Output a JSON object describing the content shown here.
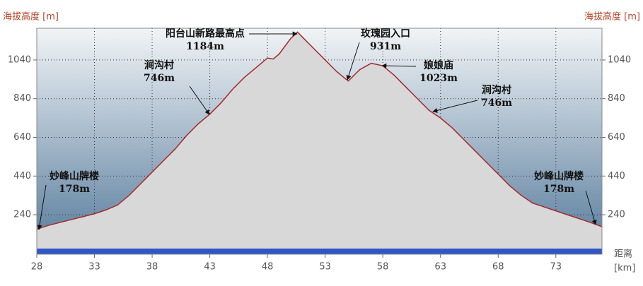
{
  "chart_data": {
    "type": "area",
    "y_label": "海拔高度 [m]",
    "y2_label": "海拔高度 [m]",
    "x_label": "距离",
    "x_unit": "[km]",
    "x": [
      28,
      29,
      30,
      31,
      32,
      33,
      34,
      35,
      36,
      37,
      38,
      39,
      40,
      41,
      42,
      43,
      44,
      45,
      46,
      47,
      48,
      48.5,
      49,
      49.5,
      50,
      50.6,
      51,
      52,
      53,
      54,
      55,
      56,
      57,
      58,
      59,
      60,
      61,
      62,
      63,
      64,
      65,
      66,
      67,
      68,
      69,
      70,
      71,
      72,
      73,
      74,
      75,
      76,
      77
    ],
    "series": [
      {
        "color": "#a52a2a",
        "fill": "#d8d8d8",
        "values": [
          165,
          185,
          200,
          215,
          230,
          245,
          265,
          290,
          340,
          400,
          460,
          520,
          580,
          650,
          710,
          760,
          820,
          890,
          950,
          1000,
          1050,
          1045,
          1070,
          1110,
          1150,
          1184,
          1160,
          1100,
          1040,
          980,
          931,
          990,
          1023,
          1010,
          960,
          900,
          840,
          780,
          740,
          690,
          630,
          570,
          510,
          450,
          390,
          340,
          300,
          280,
          260,
          240,
          220,
          200,
          178
        ]
      }
    ],
    "xlim": [
      28,
      77
    ],
    "ylim": [
      36,
      1204
    ],
    "xticks": [
      28,
      33,
      38,
      43,
      48,
      53,
      58,
      63,
      68,
      73
    ],
    "yticks": [
      240,
      440,
      640,
      840,
      1040
    ],
    "grid": true,
    "annotations": [
      {
        "name": "妙峰山牌楼",
        "text": "178m"
      },
      {
        "name": "涧沟村",
        "text": "746m"
      },
      {
        "name": "阳台山新路最高点",
        "text": "1184m"
      },
      {
        "name": "玫瑰园入口",
        "text": "931m"
      },
      {
        "name": "娘娘庙",
        "text": "1023m"
      },
      {
        "name": "涧沟村",
        "text": "746m"
      },
      {
        "name": "妙峰山牌楼",
        "text": "178m"
      }
    ]
  }
}
